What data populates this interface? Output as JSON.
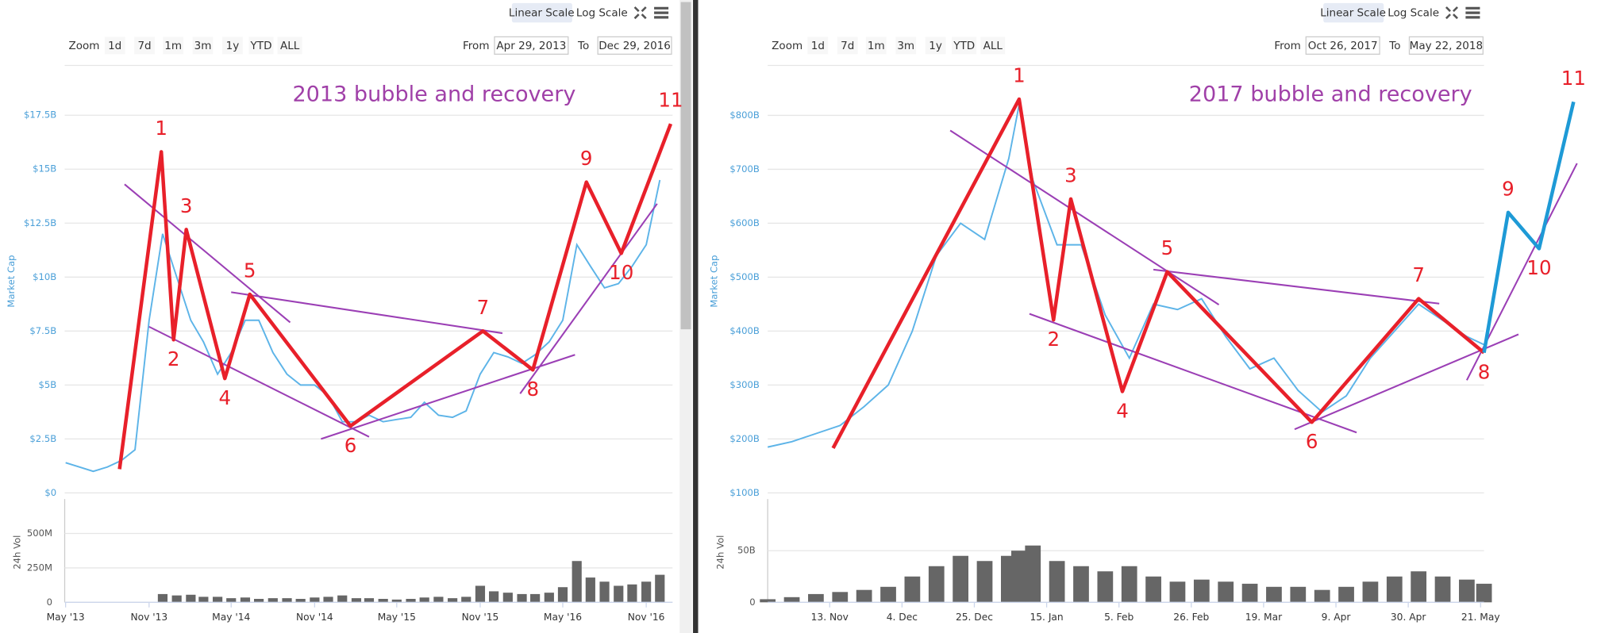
{
  "chart_data": [
    {
      "type": "line",
      "title": "2013 bubble and recovery",
      "scale_buttons": [
        "Linear Scale",
        "Log Scale"
      ],
      "zoom_label": "Zoom",
      "zoom_buttons": [
        "1d",
        "7d",
        "1m",
        "3m",
        "1y",
        "YTD",
        "ALL"
      ],
      "from_label": "From",
      "from": "Apr 29, 2013",
      "to_label": "To",
      "to": "Dec 29, 2016",
      "ylabel": "Market Cap",
      "color": "#5db4e8",
      "xlim": [
        "2013-04-29",
        "2016-12-29"
      ],
      "xticks": [
        {
          "value": "2013-05",
          "label": "May '13"
        },
        {
          "value": "2013-11",
          "label": "Nov '13"
        },
        {
          "value": "2014-05",
          "label": "May '14"
        },
        {
          "value": "2014-11",
          "label": "Nov '14"
        },
        {
          "value": "2015-05",
          "label": "May '15"
        },
        {
          "value": "2015-11",
          "label": "Nov '15"
        },
        {
          "value": "2016-05",
          "label": "May '16"
        },
        {
          "value": "2016-11",
          "label": "Nov '16"
        }
      ],
      "ylim": [
        0,
        18.1
      ],
      "yticks": [
        {
          "value": 0,
          "label": "$0"
        },
        {
          "value": 2.5,
          "label": "$2.5B"
        },
        {
          "value": 5,
          "label": "$5B"
        },
        {
          "value": 7.5,
          "label": "$7.5B"
        },
        {
          "value": 10,
          "label": "$10B"
        },
        {
          "value": 12.5,
          "label": "$12.5B"
        },
        {
          "value": 15,
          "label": "$15B"
        },
        {
          "value": 17.5,
          "label": "$17.5B"
        }
      ],
      "grid": true,
      "x": [
        "2013-05",
        "2013-06",
        "2013-07",
        "2013-08",
        "2013-09",
        "2013-10",
        "2013-11",
        "2013-12",
        "2014-01",
        "2014-02",
        "2014-03",
        "2014-04",
        "2014-05",
        "2014-06",
        "2014-07",
        "2014-08",
        "2014-09",
        "2014-10",
        "2014-11",
        "2014-12",
        "2015-01",
        "2015-02",
        "2015-03",
        "2015-04",
        "2015-05",
        "2015-06",
        "2015-07",
        "2015-08",
        "2015-09",
        "2015-10",
        "2015-11",
        "2015-12",
        "2016-01",
        "2016-02",
        "2016-03",
        "2016-04",
        "2016-05",
        "2016-06",
        "2016-07",
        "2016-08",
        "2016-09",
        "2016-10",
        "2016-11",
        "2016-12"
      ],
      "values": [
        1.4,
        1.2,
        1.0,
        1.2,
        1.5,
        2.0,
        8.0,
        12.0,
        10,
        8,
        7,
        5.5,
        6.5,
        8,
        8,
        6.5,
        5.5,
        5.0,
        5.0,
        4.5,
        3.3,
        3.3,
        3.6,
        3.3,
        3.4,
        3.5,
        4.2,
        3.6,
        3.5,
        3.8,
        5.5,
        6.5,
        6.3,
        6.0,
        6.4,
        7.0,
        8.0,
        11.5,
        10.5,
        9.5,
        9.7,
        10.5,
        11.5,
        14.5
      ],
      "volume": {
        "label": "24h Vol",
        "color": "#666666",
        "ylim": [
          0,
          750
        ],
        "yticks": [
          0,
          {
            "value": 250,
            "label": "250M"
          },
          {
            "value": 500,
            "label": "500M"
          }
        ],
        "values": [
          null,
          null,
          null,
          null,
          null,
          null,
          null,
          60,
          50,
          55,
          40,
          40,
          30,
          35,
          25,
          30,
          30,
          25,
          35,
          40,
          50,
          30,
          30,
          25,
          20,
          25,
          35,
          40,
          30,
          40,
          120,
          80,
          70,
          60,
          60,
          70,
          110,
          300,
          180,
          150,
          120,
          130,
          150,
          200
        ]
      },
      "waves": [
        {
          "color": "#e8202a",
          "x": [
            "2013-08-28",
            "2013-11-28",
            "2013-12-25",
            "2014-01-22",
            "2014-04-17",
            "2014-06-11",
            "2015-01-19",
            "2015-11-07",
            "2016-02-25",
            "2016-06-22",
            "2016-09-07",
            "2016-12-25"
          ],
          "values": [
            1.1,
            15.8,
            7.1,
            12.2,
            5.3,
            9.2,
            3.1,
            7.5,
            5.7,
            14.4,
            11.1,
            17.1
          ],
          "labels": [
            null,
            "1",
            "2",
            "3",
            "4",
            "5",
            "6",
            "7",
            "8",
            "9",
            "10",
            "11"
          ]
        }
      ],
      "trend_color": "#9b3fb5",
      "trend_lines": [
        {
          "x": [
            "2013-09-08",
            "2014-09-08"
          ],
          "values": [
            14.3,
            7.9
          ]
        },
        {
          "x": [
            "2013-11-01",
            "2015-03-01"
          ],
          "values": [
            7.7,
            2.6
          ]
        },
        {
          "x": [
            "2014-05-01",
            "2015-12-20"
          ],
          "values": [
            9.3,
            7.4
          ]
        },
        {
          "x": [
            "2014-11-15",
            "2016-05-28"
          ],
          "values": [
            2.5,
            6.4
          ]
        },
        {
          "x": [
            "2016-01-28",
            "2016-11-25"
          ],
          "values": [
            4.6,
            13.4
          ]
        }
      ]
    },
    {
      "type": "line",
      "title": "2017 bubble and recovery",
      "scale_buttons": [
        "Linear Scale",
        "Log Scale"
      ],
      "zoom_label": "Zoom",
      "zoom_buttons": [
        "1d",
        "7d",
        "1m",
        "3m",
        "1y",
        "YTD",
        "ALL"
      ],
      "from_label": "From",
      "from": "Oct 26, 2017",
      "to_label": "To",
      "to": "May 22, 2018",
      "ylabel": "Market Cap",
      "color": "#5db4e8",
      "xlim": [
        "2017-10-26",
        "2018-05-22"
      ],
      "xticks": [
        {
          "value": "2017-11-13",
          "label": "13. Nov"
        },
        {
          "value": "2017-12-04",
          "label": "4. Dec"
        },
        {
          "value": "2017-12-25",
          "label": "25. Dec"
        },
        {
          "value": "2018-01-15",
          "label": "15. Jan"
        },
        {
          "value": "2018-02-05",
          "label": "5. Feb"
        },
        {
          "value": "2018-02-26",
          "label": "26. Feb"
        },
        {
          "value": "2018-03-19",
          "label": "19. Mar"
        },
        {
          "value": "2018-04-09",
          "label": "9. Apr"
        },
        {
          "value": "2018-04-30",
          "label": "30. Apr"
        },
        {
          "value": "2018-05-21",
          "label": "21. May"
        }
      ],
      "ylim": [
        100,
        830
      ],
      "yticks": [
        {
          "value": 100,
          "label": "$100B"
        },
        {
          "value": 200,
          "label": "$200B"
        },
        {
          "value": 300,
          "label": "$300B"
        },
        {
          "value": 400,
          "label": "$400B"
        },
        {
          "value": 500,
          "label": "$500B"
        },
        {
          "value": 600,
          "label": "$600B"
        },
        {
          "value": 700,
          "label": "$700B"
        },
        {
          "value": 800,
          "label": "$800B"
        }
      ],
      "grid": true,
      "x": [
        "2017-10-26",
        "2017-11-02",
        "2017-11-09",
        "2017-11-16",
        "2017-11-23",
        "2017-11-30",
        "2017-12-07",
        "2017-12-14",
        "2017-12-21",
        "2017-12-28",
        "2018-01-04",
        "2018-01-07",
        "2018-01-11",
        "2018-01-18",
        "2018-01-25",
        "2018-02-01",
        "2018-02-08",
        "2018-02-15",
        "2018-02-22",
        "2018-03-01",
        "2018-03-08",
        "2018-03-15",
        "2018-03-22",
        "2018-03-29",
        "2018-04-05",
        "2018-04-12",
        "2018-04-19",
        "2018-04-26",
        "2018-05-03",
        "2018-05-10",
        "2018-05-17",
        "2018-05-22"
      ],
      "values": [
        185,
        195,
        210,
        225,
        260,
        300,
        400,
        540,
        600,
        570,
        720,
        820,
        680,
        560,
        560,
        430,
        350,
        450,
        440,
        460,
        390,
        330,
        350,
        290,
        250,
        280,
        350,
        400,
        450,
        420,
        390,
        375
      ],
      "volume": {
        "label": "24h Vol",
        "color": "#666666",
        "ylim": [
          0,
          100
        ],
        "yticks": [
          0,
          {
            "value": 50,
            "label": "50B"
          }
        ],
        "values": [
          3,
          5,
          8,
          10,
          12,
          15,
          25,
          35,
          45,
          40,
          45,
          50,
          55,
          40,
          35,
          30,
          35,
          25,
          20,
          22,
          20,
          18,
          15,
          15,
          12,
          15,
          20,
          25,
          30,
          25,
          22,
          18
        ]
      },
      "waves": [
        {
          "color": "#e8202a",
          "x": [
            "2017-11-14",
            "2018-01-07",
            "2018-01-17",
            "2018-01-22",
            "2018-02-06",
            "2018-02-19",
            "2018-04-02",
            "2018-05-03",
            "2018-05-22"
          ],
          "values": [
            183,
            830,
            421,
            645,
            288,
            510,
            231,
            460,
            360
          ],
          "labels": [
            null,
            "1",
            "2",
            "3",
            "4",
            "5",
            "6",
            "7",
            "8"
          ]
        },
        {
          "color": "#1e9ad6",
          "x": [
            "2018-05-22",
            "2018-05-29",
            "2018-06-07",
            "2018-06-17"
          ],
          "values": [
            360,
            620,
            553,
            825
          ],
          "labels": [
            null,
            "9",
            "10",
            "11"
          ]
        }
      ],
      "trend_color": "#9b3fb5",
      "trend_lines": [
        {
          "x": [
            "2017-12-18",
            "2018-03-06"
          ],
          "values": [
            772,
            449
          ]
        },
        {
          "x": [
            "2018-01-10",
            "2018-04-15"
          ],
          "values": [
            432,
            212
          ]
        },
        {
          "x": [
            "2018-02-15",
            "2018-05-09"
          ],
          "values": [
            514,
            451
          ]
        },
        {
          "x": [
            "2018-03-28",
            "2018-06-01"
          ],
          "values": [
            218,
            394
          ]
        },
        {
          "x": [
            "2018-05-17",
            "2018-06-18"
          ],
          "values": [
            309,
            711
          ]
        }
      ]
    }
  ]
}
